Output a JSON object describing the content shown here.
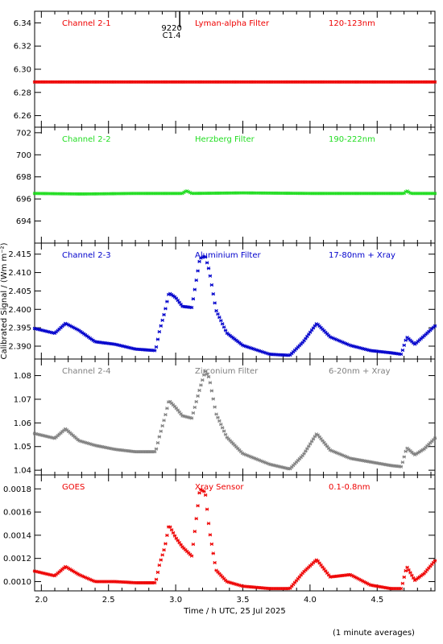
{
  "chart_data": {
    "type": "scatter",
    "xlabel": "Time / h UTC, 25 Jul 2025",
    "ylabel": "Calibrated Signal / (Wm m⁻²)",
    "x_ticks": [
      "2.0",
      "2.5",
      "3.0",
      "3.5",
      "4.0",
      "4.5"
    ],
    "xlim": [
      1.95,
      4.93
    ],
    "marker_annotation": {
      "x": 2.97,
      "lines": [
        "9220",
        "C1.4"
      ]
    },
    "footer_note": "(1 minute averages)",
    "grid": false,
    "panels": [
      {
        "channel": "Channel 2-1",
        "filter": "Lyman-alpha Filter",
        "band": "120-123nm",
        "color": "#ee0000",
        "ylim": [
          6.25,
          6.35
        ],
        "y_ticks": [
          "6.26",
          "6.28",
          "6.30",
          "6.32",
          "6.34"
        ],
        "x": [
          1.95,
          4.93
        ],
        "y": [
          6.289,
          6.289
        ]
      },
      {
        "channel": "Channel 2-2",
        "filter": "Herzberg Filter",
        "band": "190-222nm",
        "color": "#22dd22",
        "ylim": [
          692,
          702.5
        ],
        "y_ticks": [
          "694",
          "696",
          "698",
          "700",
          "702"
        ],
        "x": [
          1.95,
          2.3,
          2.7,
          3.05,
          3.08,
          3.12,
          3.5,
          4.0,
          4.7,
          4.72,
          4.75,
          4.93
        ],
        "y": [
          696.5,
          696.45,
          696.5,
          696.5,
          696.75,
          696.5,
          696.55,
          696.5,
          696.5,
          696.75,
          696.5,
          696.5
        ]
      },
      {
        "channel": "Channel 2-3",
        "filter": "Aluminium Filter",
        "band": "17-80nm + Xray",
        "color": "#0000cc",
        "ylim": [
          2.3865,
          2.418
        ],
        "y_ticks": [
          "2.390",
          "2.395",
          "2.400",
          "2.405",
          "2.410",
          "2.415"
        ],
        "x": [
          1.95,
          2.1,
          2.18,
          2.28,
          2.4,
          2.55,
          2.7,
          2.85,
          2.88,
          2.92,
          2.95,
          3.0,
          3.05,
          3.12,
          3.18,
          3.22,
          3.25,
          3.3,
          3.38,
          3.5,
          3.7,
          3.85,
          3.95,
          4.05,
          4.15,
          4.3,
          4.45,
          4.6,
          4.68,
          4.72,
          4.78,
          4.85,
          4.93
        ],
        "y": [
          2.3948,
          2.3935,
          2.3962,
          2.3943,
          2.3912,
          2.3905,
          2.3892,
          2.3888,
          2.3942,
          2.3995,
          2.4045,
          2.4032,
          2.4008,
          2.4005,
          2.4138,
          2.4145,
          2.4105,
          2.3998,
          2.3936,
          2.3902,
          2.3878,
          2.3875,
          2.3912,
          2.3962,
          2.3925,
          2.3902,
          2.3888,
          2.3882,
          2.3878,
          2.3925,
          2.3905,
          2.3928,
          2.3955
        ]
      },
      {
        "channel": "Channel 2-4",
        "filter": "Zirconium Filter",
        "band": "6-20nm + Xray",
        "color": "#808080",
        "ylim": [
          1.038,
          1.087
        ],
        "y_ticks": [
          "1.04",
          "1.05",
          "1.06",
          "1.07",
          "1.08"
        ],
        "x": [
          1.95,
          2.1,
          2.18,
          2.28,
          2.4,
          2.55,
          2.7,
          2.85,
          2.88,
          2.92,
          2.95,
          3.0,
          3.05,
          3.12,
          3.18,
          3.22,
          3.25,
          3.3,
          3.38,
          3.5,
          3.7,
          3.85,
          3.95,
          4.05,
          4.15,
          4.3,
          4.45,
          4.6,
          4.68,
          4.72,
          4.78,
          4.85,
          4.93
        ],
        "y": [
          1.0555,
          1.0535,
          1.0575,
          1.0525,
          1.0505,
          1.0488,
          1.0478,
          1.0478,
          1.0545,
          1.0625,
          1.0695,
          1.0665,
          1.063,
          1.062,
          1.0745,
          1.082,
          1.079,
          1.064,
          1.054,
          1.047,
          1.0425,
          1.0405,
          1.0465,
          1.0555,
          1.0485,
          1.045,
          1.0435,
          1.042,
          1.0415,
          1.0495,
          1.0465,
          1.049,
          1.0535
        ]
      },
      {
        "channel": "GOES",
        "filter": "Xray Sensor",
        "band": "0.1-0.8nm",
        "color": "#ee0000",
        "ylim": [
          0.00092,
          0.00192
        ],
        "y_ticks": [
          "0.0010",
          "0.0012",
          "0.0014",
          "0.0016",
          "0.0018"
        ],
        "x": [
          1.95,
          2.1,
          2.18,
          2.28,
          2.4,
          2.55,
          2.7,
          2.85,
          2.88,
          2.92,
          2.95,
          3.0,
          3.05,
          3.12,
          3.18,
          3.22,
          3.25,
          3.3,
          3.38,
          3.5,
          3.7,
          3.85,
          3.95,
          4.05,
          4.15,
          4.3,
          4.45,
          4.6,
          4.68,
          4.72,
          4.78,
          4.85,
          4.93
        ],
        "y": [
          0.00109,
          0.00105,
          0.00113,
          0.00106,
          0.001,
          0.001,
          0.00099,
          0.00099,
          0.00115,
          0.0013,
          0.00149,
          0.00138,
          0.0013,
          0.00122,
          0.0018,
          0.00177,
          0.00145,
          0.0011,
          0.001,
          0.00096,
          0.00094,
          0.00094,
          0.00108,
          0.00119,
          0.00104,
          0.00106,
          0.00097,
          0.00094,
          0.00094,
          0.00113,
          0.00101,
          0.00107,
          0.00118
        ]
      }
    ]
  }
}
